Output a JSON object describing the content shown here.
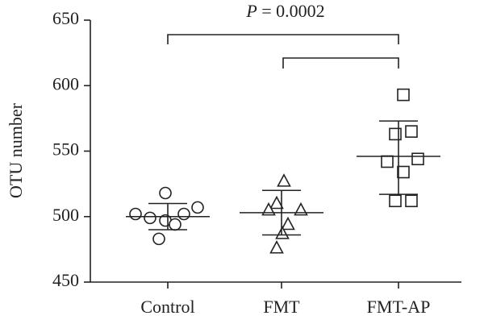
{
  "chart_data": {
    "type": "dot_plot",
    "y_label": "OTU number",
    "annotation": "P = 0.0002",
    "categories": [
      "Control",
      "FMT",
      "FMT-AP"
    ],
    "groups": [
      {
        "marker": "circle",
        "values": [
          502,
          499,
          518,
          483,
          497,
          494,
          502,
          507
        ],
        "mean": 500,
        "upper": 510,
        "lower": 490
      },
      {
        "marker": "triangle",
        "values": [
          527,
          510,
          505,
          505,
          494,
          487,
          476
        ],
        "mean": 503,
        "upper": 520,
        "lower": 486
      },
      {
        "marker": "square",
        "values": [
          593,
          563,
          565,
          542,
          544,
          534,
          512,
          512
        ],
        "mean": 546,
        "upper": 573,
        "lower": 517
      }
    ],
    "color": "#222222",
    "ylim": [
      450,
      650
    ],
    "yticks": [
      450,
      500,
      550,
      600,
      650
    ]
  }
}
